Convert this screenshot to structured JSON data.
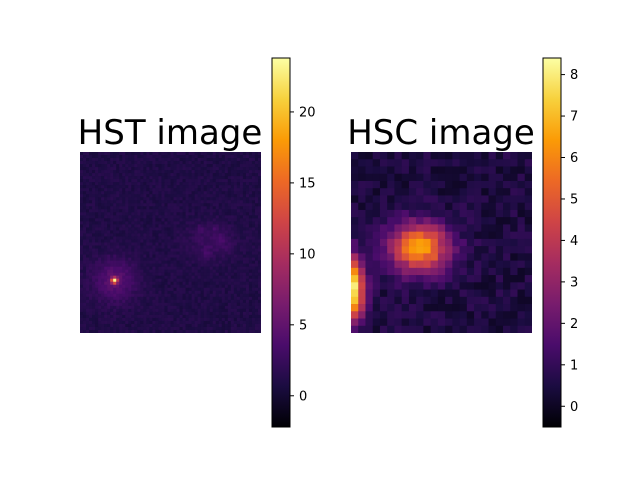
{
  "chart_data": [
    {
      "type": "heatmap",
      "title": "HST image",
      "grid": false,
      "axes_visible": false,
      "colormap": "inferno",
      "colorbar": {
        "range": [
          -2.2,
          23.8
        ],
        "ticks": [
          0,
          5,
          10,
          15,
          20
        ],
        "tick_labels": [
          "0",
          "5",
          "10",
          "15",
          "20"
        ]
      },
      "sources": [
        {
          "label": "bright compact galaxy with point-like core, lower-left",
          "peak": 23.8,
          "background": 1.0
        },
        {
          "label": "faint diffuse clumpy galaxy, upper-right",
          "peak": 3.0,
          "background": 1.0
        }
      ]
    },
    {
      "type": "heatmap",
      "title": "HSC image",
      "grid": false,
      "axes_visible": false,
      "colormap": "inferno",
      "colorbar": {
        "range": [
          -0.5,
          8.4
        ],
        "ticks": [
          0,
          1,
          2,
          3,
          4,
          5,
          6,
          7,
          8
        ],
        "tick_labels": [
          "0",
          "1",
          "2",
          "3",
          "4",
          "5",
          "6",
          "7",
          "8"
        ]
      },
      "sources": [
        {
          "label": "extended bright blob, center",
          "peak": 6.5,
          "background": 0.5
        },
        {
          "label": "very bright source clipped at left edge",
          "peak": 8.4,
          "background": 0.5
        }
      ]
    }
  ],
  "colormap_stops": [
    "#000004",
    "#1b0c41",
    "#4a0c6b",
    "#781c6d",
    "#a52c60",
    "#cf4446",
    "#ed6925",
    "#fb9b06",
    "#f7d13d",
    "#fcffa4"
  ]
}
